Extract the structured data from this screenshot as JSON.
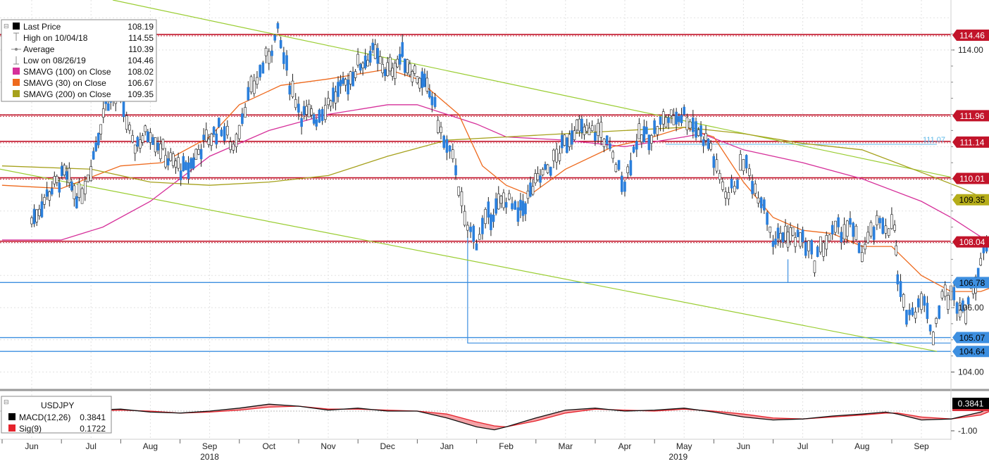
{
  "legend": {
    "last_price": {
      "label": "Last Price",
      "value": "108.19"
    },
    "high": {
      "label": "High on 10/04/18",
      "value": "114.55"
    },
    "average": {
      "label": "Average",
      "value": "110.39"
    },
    "low": {
      "label": "Low on 08/26/19",
      "value": "104.46"
    },
    "smavg100": {
      "label": "SMAVG (100)  on Close",
      "value": "108.02",
      "color": "#d6309a"
    },
    "smavg30": {
      "label": "SMAVG (30)  on Close",
      "value": "106.67",
      "color": "#ee6a1e"
    },
    "smavg200": {
      "label": "SMAVG (200)  on Close",
      "value": "109.35",
      "color": "#a6a11c"
    }
  },
  "macd_legend": {
    "title": "USDJPY",
    "macd": {
      "label": "MACD(12,26)",
      "value": "0.3841"
    },
    "sig": {
      "label": "Sig(9)",
      "value": "0.1722"
    }
  },
  "macd_value_tag": "0.3841",
  "macd_axis_label": "-1.00",
  "level_tags": [
    {
      "text": "114.46",
      "value": 114.46,
      "fill": "#c2142a",
      "color": "#ffffff"
    },
    {
      "text": "111.96",
      "value": 111.96,
      "fill": "#c2142a",
      "color": "#ffffff"
    },
    {
      "text": "111.14",
      "value": 111.14,
      "fill": "#c2142a",
      "color": "#ffffff"
    },
    {
      "text": "110.01",
      "value": 110.01,
      "fill": "#c2142a",
      "color": "#ffffff"
    },
    {
      "text": "109.35",
      "value": 109.35,
      "fill": "#b5ad1a",
      "color": "#000000"
    },
    {
      "text": "108.04",
      "value": 108.04,
      "fill": "#c2142a",
      "color": "#ffffff"
    },
    {
      "text": "106.78",
      "value": 106.78,
      "fill": "#3d8fe0",
      "color": "#000000"
    },
    {
      "text": "105.07",
      "value": 105.07,
      "fill": "#3d8fe0",
      "color": "#000000"
    },
    {
      "text": "104.64",
      "value": 104.64,
      "fill": "#3d8fe0",
      "color": "#000000"
    }
  ],
  "side_label": {
    "text": "111.07",
    "value": 111.07,
    "color": "#5db8e8"
  },
  "chart_data": {
    "type": "line",
    "instrument": "USDJPY",
    "price_axis": {
      "ticks": [
        "114.00",
        "106.00",
        "104.00"
      ],
      "tick_values": [
        114,
        106,
        104
      ],
      "ylim": [
        103.5,
        115.0
      ]
    },
    "x_axis": {
      "month_labels": [
        "Jun",
        "Jul",
        "Aug",
        "Sep",
        "Oct",
        "Nov",
        "Dec",
        "Jan",
        "Feb",
        "Mar",
        "Apr",
        "May",
        "Jun",
        "Jul",
        "Aug",
        "Sep"
      ],
      "year_labels": [
        "2018",
        "2019"
      ]
    },
    "horizontal_levels": [
      {
        "value": 114.46,
        "color": "#c2142a"
      },
      {
        "value": 111.96,
        "color": "#c2142a"
      },
      {
        "value": 111.14,
        "color": "#c2142a"
      },
      {
        "value": 110.01,
        "color": "#c2142a"
      },
      {
        "value": 108.04,
        "color": "#c2142a"
      },
      {
        "value": 106.78,
        "color": "#3d8fe0"
      },
      {
        "value": 105.07,
        "color": "#3d8fe0"
      },
      {
        "value": 104.64,
        "color": "#3d8fe0"
      }
    ],
    "price_path": [
      [
        0,
        108.7
      ],
      [
        0.3,
        109.6
      ],
      [
        0.55,
        110.1
      ],
      [
        0.8,
        109.4
      ],
      [
        1.0,
        110.4
      ],
      [
        1.25,
        112.4
      ],
      [
        1.5,
        112.6
      ],
      [
        1.7,
        111.0
      ],
      [
        2.0,
        111.5
      ],
      [
        2.3,
        110.6
      ],
      [
        2.6,
        110.2
      ],
      [
        2.9,
        111.1
      ],
      [
        3.2,
        111.6
      ],
      [
        3.4,
        111.0
      ],
      [
        3.6,
        112.3
      ],
      [
        3.8,
        113.1
      ],
      [
        4.0,
        113.9
      ],
      [
        4.15,
        114.5
      ],
      [
        4.35,
        113.0
      ],
      [
        4.55,
        112.0
      ],
      [
        4.8,
        111.9
      ],
      [
        5.0,
        112.4
      ],
      [
        5.25,
        112.8
      ],
      [
        5.5,
        113.5
      ],
      [
        5.75,
        113.9
      ],
      [
        6.0,
        113.3
      ],
      [
        6.25,
        113.8
      ],
      [
        6.5,
        113.2
      ],
      [
        6.75,
        112.5
      ],
      [
        6.95,
        111.1
      ],
      [
        7.15,
        110.4
      ],
      [
        7.3,
        108.6
      ],
      [
        7.5,
        108.1
      ],
      [
        7.7,
        108.8
      ],
      [
        8.0,
        109.4
      ],
      [
        8.2,
        108.8
      ],
      [
        8.45,
        109.7
      ],
      [
        8.7,
        110.3
      ],
      [
        8.9,
        110.8
      ],
      [
        9.15,
        111.6
      ],
      [
        9.4,
        111.4
      ],
      [
        9.6,
        111.5
      ],
      [
        9.8,
        110.6
      ],
      [
        10.0,
        109.9
      ],
      [
        10.2,
        111.2
      ],
      [
        10.45,
        111.4
      ],
      [
        10.65,
        111.8
      ],
      [
        11.0,
        112.0
      ],
      [
        11.2,
        111.6
      ],
      [
        11.45,
        111.0
      ],
      [
        11.55,
        110.2
      ],
      [
        11.75,
        109.5
      ],
      [
        11.9,
        110.0
      ],
      [
        12.0,
        110.6
      ],
      [
        12.2,
        109.7
      ],
      [
        12.35,
        109.3
      ],
      [
        12.5,
        108.1
      ],
      [
        12.75,
        108.3
      ],
      [
        13.0,
        108.1
      ],
      [
        13.2,
        107.5
      ],
      [
        13.4,
        108.1
      ],
      [
        13.6,
        108.4
      ],
      [
        13.8,
        108.5
      ],
      [
        14.0,
        107.7
      ],
      [
        14.2,
        108.4
      ],
      [
        14.35,
        108.6
      ],
      [
        14.55,
        108.5
      ],
      [
        14.6,
        106.8
      ],
      [
        14.7,
        106.0
      ],
      [
        14.85,
        105.8
      ],
      [
        15.0,
        106.4
      ],
      [
        15.2,
        105.2
      ],
      [
        15.35,
        106.4
      ],
      [
        15.55,
        106.3
      ],
      [
        15.75,
        106.0
      ],
      [
        16.0,
        107.4
      ],
      [
        16.15,
        108.1
      ],
      [
        16.3,
        108.2
      ]
    ],
    "macd_path": [
      [
        0,
        -0.15
      ],
      [
        0.5,
        -0.05
      ],
      [
        1.0,
        0.05
      ],
      [
        1.5,
        0.1
      ],
      [
        2.0,
        -0.05
      ],
      [
        2.5,
        -0.1
      ],
      [
        3.0,
        0.0
      ],
      [
        3.5,
        0.15
      ],
      [
        4.0,
        0.35
      ],
      [
        4.5,
        0.25
      ],
      [
        5.0,
        0.05
      ],
      [
        5.5,
        0.15
      ],
      [
        6.0,
        0.0
      ],
      [
        6.5,
        0.0
      ],
      [
        7.0,
        -0.35
      ],
      [
        7.5,
        -0.8
      ],
      [
        7.8,
        -0.95
      ],
      [
        8.0,
        -0.8
      ],
      [
        8.5,
        -0.35
      ],
      [
        9.0,
        0.05
      ],
      [
        9.5,
        0.15
      ],
      [
        10.0,
        0.0
      ],
      [
        10.5,
        0.05
      ],
      [
        11.0,
        0.15
      ],
      [
        11.5,
        -0.05
      ],
      [
        12.0,
        -0.3
      ],
      [
        12.5,
        -0.45
      ],
      [
        13.0,
        -0.4
      ],
      [
        13.5,
        -0.25
      ],
      [
        14.0,
        -0.15
      ],
      [
        14.4,
        -0.05
      ],
      [
        14.6,
        -0.15
      ],
      [
        15.0,
        -0.45
      ],
      [
        15.5,
        -0.4
      ],
      [
        16.0,
        -0.05
      ],
      [
        16.3,
        0.3841
      ]
    ],
    "sig_path": [
      [
        0,
        -0.2
      ],
      [
        0.5,
        -0.1
      ],
      [
        1.0,
        0.0
      ],
      [
        1.5,
        0.05
      ],
      [
        2.0,
        0.0
      ],
      [
        2.5,
        -0.1
      ],
      [
        3.0,
        -0.05
      ],
      [
        3.5,
        0.05
      ],
      [
        4.0,
        0.2
      ],
      [
        4.5,
        0.25
      ],
      [
        5.0,
        0.1
      ],
      [
        5.5,
        0.1
      ],
      [
        6.0,
        0.05
      ],
      [
        6.5,
        0.0
      ],
      [
        7.0,
        -0.15
      ],
      [
        7.5,
        -0.55
      ],
      [
        7.8,
        -0.75
      ],
      [
        8.0,
        -0.8
      ],
      [
        8.5,
        -0.5
      ],
      [
        9.0,
        -0.1
      ],
      [
        9.5,
        0.1
      ],
      [
        10.0,
        0.05
      ],
      [
        10.5,
        0.0
      ],
      [
        11.0,
        0.1
      ],
      [
        11.5,
        0.0
      ],
      [
        12.0,
        -0.15
      ],
      [
        12.5,
        -0.35
      ],
      [
        13.0,
        -0.4
      ],
      [
        13.5,
        -0.3
      ],
      [
        14.0,
        -0.2
      ],
      [
        14.4,
        -0.1
      ],
      [
        14.6,
        -0.1
      ],
      [
        15.0,
        -0.3
      ],
      [
        15.5,
        -0.4
      ],
      [
        16.0,
        -0.2
      ],
      [
        16.3,
        0.1722
      ]
    ]
  }
}
